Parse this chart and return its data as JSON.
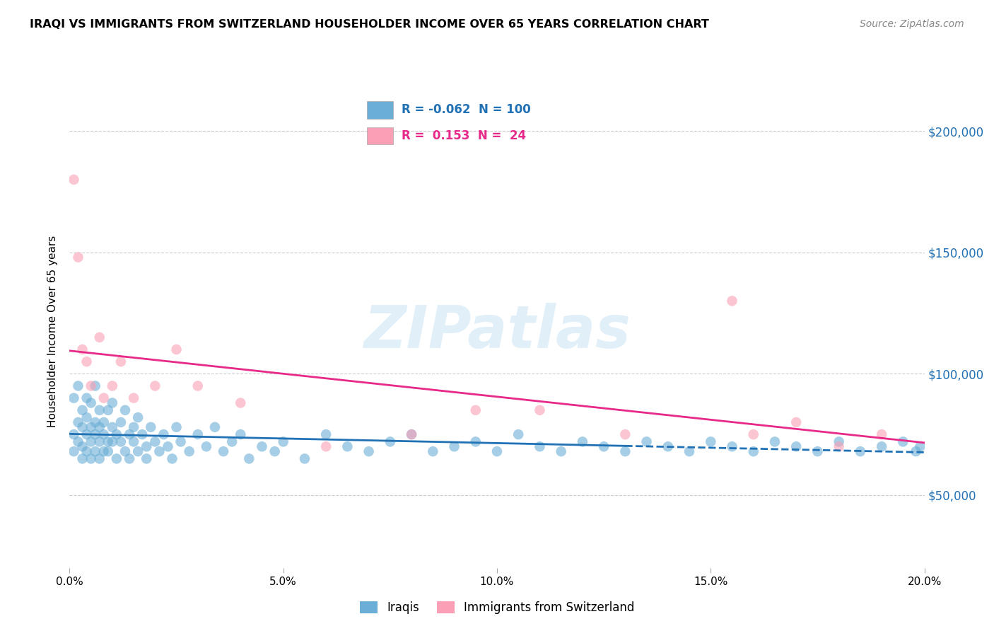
{
  "title": "IRAQI VS IMMIGRANTS FROM SWITZERLAND HOUSEHOLDER INCOME OVER 65 YEARS CORRELATION CHART",
  "source": "Source: ZipAtlas.com",
  "ylabel": "Householder Income Over 65 years",
  "legend_label1": "Iraqis",
  "legend_label2": "Immigrants from Switzerland",
  "R1": -0.062,
  "N1": 100,
  "R2": 0.153,
  "N2": 24,
  "color1": "#6baed6",
  "color2": "#fa9fb5",
  "line_color1": "#2171b5",
  "line_color2": "#e7298a",
  "watermark": "ZIPatlas",
  "xmin": 0.0,
  "xmax": 0.2,
  "ymin": 20000,
  "ymax": 215000,
  "yticks": [
    50000,
    100000,
    150000,
    200000
  ],
  "xticks": [
    0.0,
    0.05,
    0.1,
    0.15,
    0.2
  ],
  "xtick_labels": [
    "0.0%",
    "5.0%",
    "10.0%",
    "15.0%",
    "20.0%"
  ],
  "iraqis_x": [
    0.001,
    0.001,
    0.001,
    0.002,
    0.002,
    0.002,
    0.003,
    0.003,
    0.003,
    0.003,
    0.004,
    0.004,
    0.004,
    0.004,
    0.005,
    0.005,
    0.005,
    0.005,
    0.006,
    0.006,
    0.006,
    0.006,
    0.007,
    0.007,
    0.007,
    0.007,
    0.008,
    0.008,
    0.008,
    0.009,
    0.009,
    0.009,
    0.01,
    0.01,
    0.01,
    0.011,
    0.011,
    0.012,
    0.012,
    0.013,
    0.013,
    0.014,
    0.014,
    0.015,
    0.015,
    0.016,
    0.016,
    0.017,
    0.018,
    0.018,
    0.019,
    0.02,
    0.021,
    0.022,
    0.023,
    0.024,
    0.025,
    0.026,
    0.028,
    0.03,
    0.032,
    0.034,
    0.036,
    0.038,
    0.04,
    0.042,
    0.045,
    0.048,
    0.05,
    0.055,
    0.06,
    0.065,
    0.07,
    0.075,
    0.08,
    0.085,
    0.09,
    0.095,
    0.1,
    0.105,
    0.11,
    0.115,
    0.12,
    0.125,
    0.13,
    0.135,
    0.14,
    0.145,
    0.15,
    0.155,
    0.16,
    0.165,
    0.17,
    0.175,
    0.18,
    0.185,
    0.19,
    0.195,
    0.198,
    0.199
  ],
  "iraqis_y": [
    90000,
    75000,
    68000,
    95000,
    72000,
    80000,
    85000,
    70000,
    78000,
    65000,
    82000,
    75000,
    68000,
    90000,
    78000,
    65000,
    88000,
    72000,
    80000,
    68000,
    75000,
    95000,
    72000,
    85000,
    65000,
    78000,
    80000,
    68000,
    75000,
    72000,
    85000,
    68000,
    78000,
    72000,
    88000,
    75000,
    65000,
    80000,
    72000,
    68000,
    85000,
    75000,
    65000,
    78000,
    72000,
    68000,
    82000,
    75000,
    70000,
    65000,
    78000,
    72000,
    68000,
    75000,
    70000,
    65000,
    78000,
    72000,
    68000,
    75000,
    70000,
    78000,
    68000,
    72000,
    75000,
    65000,
    70000,
    68000,
    72000,
    65000,
    75000,
    70000,
    68000,
    72000,
    75000,
    68000,
    70000,
    72000,
    68000,
    75000,
    70000,
    68000,
    72000,
    70000,
    68000,
    72000,
    70000,
    68000,
    72000,
    70000,
    68000,
    72000,
    70000,
    68000,
    72000,
    68000,
    70000,
    72000,
    68000,
    70000
  ],
  "swiss_x": [
    0.001,
    0.002,
    0.003,
    0.004,
    0.005,
    0.007,
    0.008,
    0.01,
    0.012,
    0.015,
    0.02,
    0.025,
    0.03,
    0.04,
    0.06,
    0.08,
    0.095,
    0.11,
    0.13,
    0.155,
    0.16,
    0.17,
    0.18,
    0.19
  ],
  "swiss_y": [
    180000,
    148000,
    110000,
    105000,
    95000,
    115000,
    90000,
    95000,
    105000,
    90000,
    95000,
    110000,
    95000,
    88000,
    70000,
    75000,
    85000,
    85000,
    75000,
    130000,
    75000,
    80000,
    70000,
    75000
  ]
}
